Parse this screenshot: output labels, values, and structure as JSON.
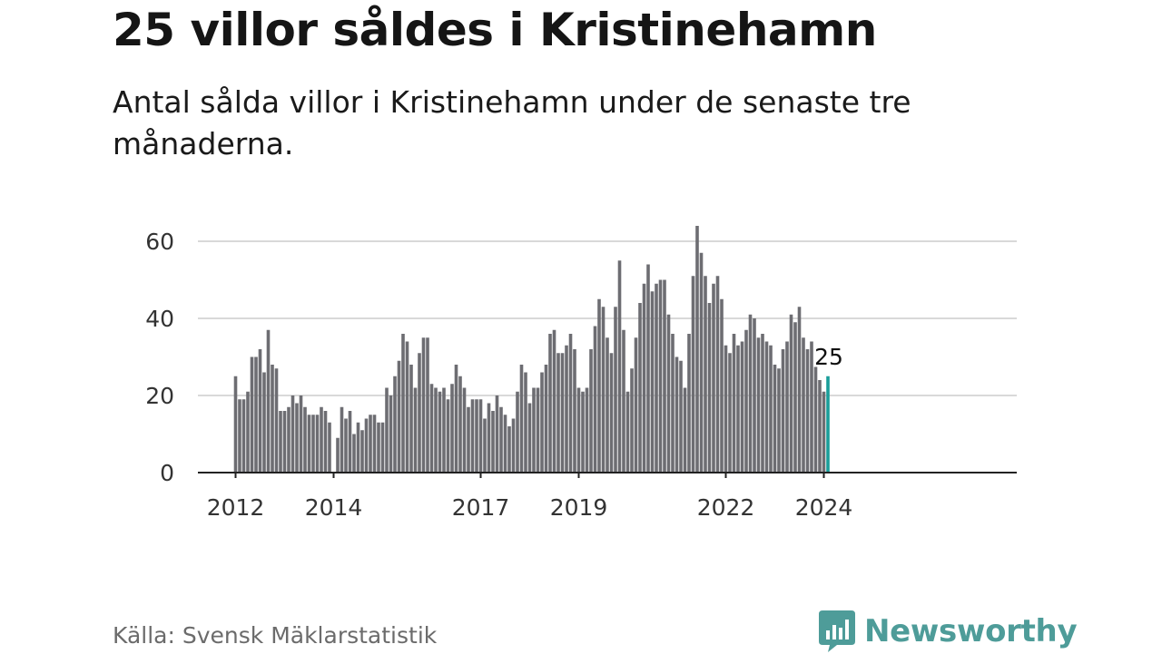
{
  "header": {
    "title": "25 villor såldes i Kristinehamn",
    "subtitle": "Antal sålda villor i Kristinehamn under de senaste tre månaderna."
  },
  "footer": {
    "source": "Källa: Svensk Mäklarstatistik",
    "brand": "Newsworthy"
  },
  "colors": {
    "bar": "#6d6d72",
    "highlight": "#1a9e9a",
    "grid": "#d9d9d9",
    "axis": "#222222",
    "brand": "#4e9c99"
  },
  "chart_data": {
    "type": "bar",
    "title": "25 villor såldes i Kristinehamn",
    "xlabel": "",
    "ylabel": "",
    "ylim": [
      0,
      65
    ],
    "yticks": [
      0,
      20,
      40,
      60
    ],
    "grid": true,
    "xtick_labels": [
      "2012",
      "2014",
      "2017",
      "2019",
      "2022",
      "2024"
    ],
    "highlight_label": "25",
    "values": [
      25,
      19,
      19,
      21,
      30,
      30,
      32,
      26,
      37,
      28,
      27,
      16,
      16,
      17,
      20,
      18,
      20,
      17,
      15,
      15,
      15,
      17,
      16,
      13,
      0,
      9,
      17,
      14,
      16,
      10,
      13,
      11,
      14,
      15,
      15,
      13,
      13,
      22,
      20,
      25,
      29,
      36,
      34,
      28,
      22,
      31,
      35,
      35,
      23,
      22,
      21,
      22,
      19,
      23,
      28,
      25,
      22,
      17,
      19,
      19,
      19,
      14,
      18,
      16,
      20,
      17,
      15,
      12,
      14,
      21,
      28,
      26,
      18,
      22,
      22,
      26,
      28,
      36,
      37,
      31,
      31,
      33,
      36,
      32,
      22,
      21,
      22,
      32,
      38,
      45,
      43,
      35,
      31,
      43,
      55,
      37,
      21,
      27,
      35,
      44,
      49,
      54,
      47,
      49,
      50,
      50,
      41,
      36,
      30,
      29,
      22,
      36,
      51,
      64,
      57,
      51,
      44,
      49,
      51,
      45,
      33,
      31,
      36,
      33,
      34,
      37,
      41,
      40,
      35,
      36,
      34,
      33,
      28,
      27,
      32,
      34,
      41,
      39,
      43,
      35,
      32,
      34,
      28,
      24,
      21,
      25
    ]
  }
}
